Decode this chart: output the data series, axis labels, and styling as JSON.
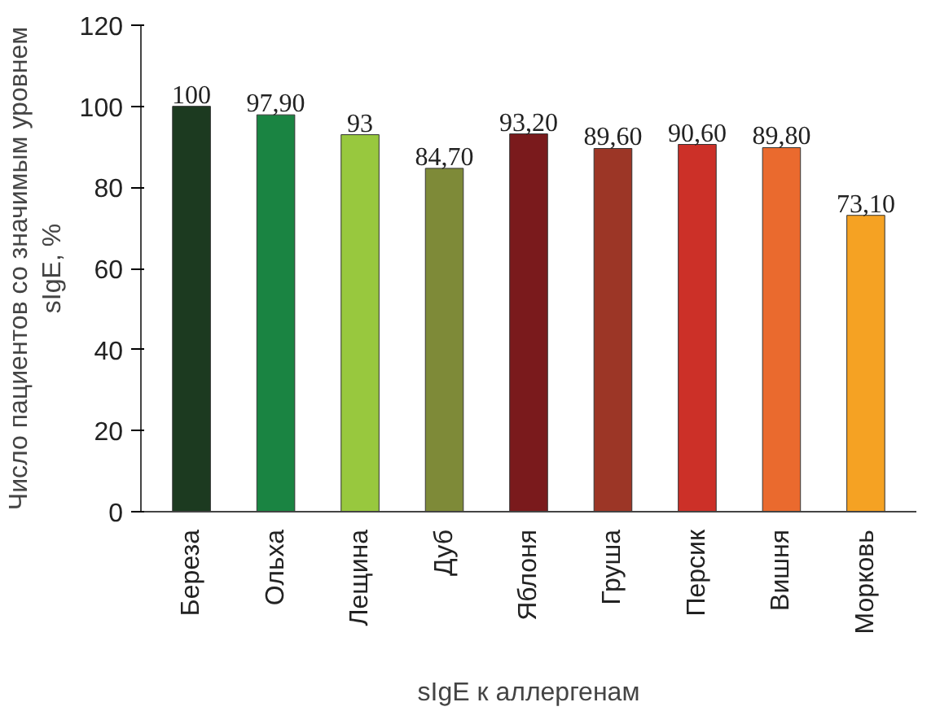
{
  "chart_data": {
    "type": "bar",
    "xlabel": "sIgE к аллергенам",
    "ylabel": "Число пациентов со значимым уровнем\nsIgE, %",
    "categories": [
      "Береза",
      "Ольха",
      "Лещина",
      "Дуб",
      "Яблоня",
      "Груша",
      "Персик",
      "Вишня",
      "Морковь"
    ],
    "values": [
      100,
      97.9,
      93,
      84.7,
      93.2,
      89.6,
      90.6,
      89.8,
      73.1
    ],
    "value_labels": [
      "100",
      "97,90",
      "93",
      "84,70",
      "93,20",
      "89,60",
      "90,60",
      "89,80",
      "73,10"
    ],
    "colors": [
      "#1c3a20",
      "#1a8442",
      "#98c83e",
      "#7e8a38",
      "#7a1a1c",
      "#9c3626",
      "#cc3028",
      "#ea6a2e",
      "#f5a223"
    ],
    "ylim": [
      0,
      120
    ],
    "yticks": [
      0,
      20,
      40,
      60,
      80,
      100,
      120
    ],
    "grid": false
  }
}
